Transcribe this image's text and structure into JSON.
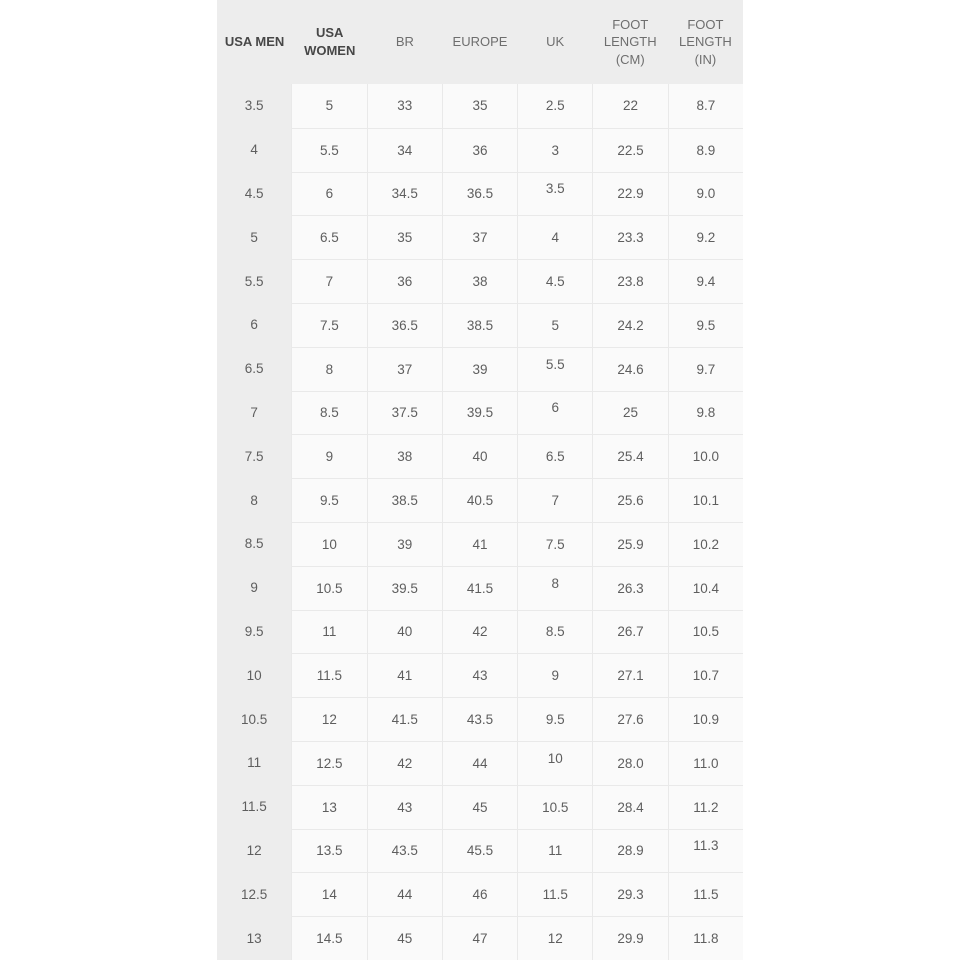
{
  "table": {
    "columns": [
      {
        "label": "USA MEN",
        "bold": true
      },
      {
        "label": "USA WOMEN",
        "bold": true
      },
      {
        "label": "BR",
        "bold": false
      },
      {
        "label": "EUROPE",
        "bold": false
      },
      {
        "label": "UK",
        "bold": false
      },
      {
        "label": "FOOT LENGTH (CM)",
        "bold": false
      },
      {
        "label": "FOOT LENGTH (IN)",
        "bold": false
      }
    ],
    "rows": [
      [
        "3.5",
        "5",
        "33",
        "35",
        "2.5",
        "22",
        "8.7"
      ],
      [
        "4",
        "5.5",
        "34",
        "36",
        "3",
        "22.5",
        "8.9"
      ],
      [
        "4.5",
        "6",
        "34.5",
        "36.5",
        "3.5",
        "22.9",
        "9.0"
      ],
      [
        "5",
        "6.5",
        "35",
        "37",
        "4",
        "23.3",
        "9.2"
      ],
      [
        "5.5",
        "7",
        "36",
        "38",
        "4.5",
        "23.8",
        "9.4"
      ],
      [
        "6",
        "7.5",
        "36.5",
        "38.5",
        "5",
        "24.2",
        "9.5"
      ],
      [
        "6.5",
        "8",
        "37",
        "39",
        "5.5",
        "24.6",
        "9.7"
      ],
      [
        "7",
        "8.5",
        "37.5",
        "39.5",
        "6",
        "25",
        "9.8"
      ],
      [
        "7.5",
        "9",
        "38",
        "40",
        "6.5",
        "25.4",
        "10.0"
      ],
      [
        "8",
        "9.5",
        "38.5",
        "40.5",
        "7",
        "25.6",
        "10.1"
      ],
      [
        "8.5",
        "10",
        "39",
        "41",
        "7.5",
        "25.9",
        "10.2"
      ],
      [
        "9",
        "10.5",
        "39.5",
        "41.5",
        "8",
        "26.3",
        "10.4"
      ],
      [
        "9.5",
        "11",
        "40",
        "42",
        "8.5",
        "26.7",
        "10.5"
      ],
      [
        "10",
        "11.5",
        "41",
        "43",
        "9",
        "27.1",
        "10.7"
      ],
      [
        "10.5",
        "12",
        "41.5",
        "43.5",
        "9.5",
        "27.6",
        "10.9"
      ],
      [
        "11",
        "12.5",
        "42",
        "44",
        "10",
        "28.0",
        "11.0"
      ],
      [
        "11.5",
        "13",
        "43",
        "45",
        "10.5",
        "28.4",
        "11.2"
      ],
      [
        "12",
        "13.5",
        "43.5",
        "45.5",
        "11",
        "28.9",
        "11.3"
      ],
      [
        "12.5",
        "14",
        "44",
        "46",
        "11.5",
        "29.3",
        "11.5"
      ],
      [
        "13",
        "14.5",
        "45",
        "47",
        "12",
        "29.9",
        "11.8"
      ]
    ],
    "raised_cells": [
      [
        2,
        4
      ],
      [
        6,
        4
      ],
      [
        7,
        4
      ],
      [
        11,
        4
      ],
      [
        15,
        4
      ],
      [
        17,
        6
      ]
    ]
  },
  "colors": {
    "page_background": "#ffffff",
    "header_background": "#ededed",
    "first_column_background": "#ededed",
    "cell_background": "#fafafa",
    "border": "#e9e9e9",
    "header_bold_text": "#474747",
    "header_text": "#6e6e6e",
    "body_text": "#5e5e5e"
  },
  "chart_data": {
    "type": "table",
    "title": "Shoe size conversion chart",
    "columns": [
      "USA MEN",
      "USA WOMEN",
      "BR",
      "EUROPE",
      "UK",
      "FOOT LENGTH (CM)",
      "FOOT LENGTH (IN)"
    ],
    "rows": [
      [
        3.5,
        5,
        33,
        35,
        2.5,
        22,
        8.7
      ],
      [
        4,
        5.5,
        34,
        36,
        3,
        22.5,
        8.9
      ],
      [
        4.5,
        6,
        34.5,
        36.5,
        3.5,
        22.9,
        9.0
      ],
      [
        5,
        6.5,
        35,
        37,
        4,
        23.3,
        9.2
      ],
      [
        5.5,
        7,
        36,
        38,
        4.5,
        23.8,
        9.4
      ],
      [
        6,
        7.5,
        36.5,
        38.5,
        5,
        24.2,
        9.5
      ],
      [
        6.5,
        8,
        37,
        39,
        5.5,
        24.6,
        9.7
      ],
      [
        7,
        8.5,
        37.5,
        39.5,
        6,
        25,
        9.8
      ],
      [
        7.5,
        9,
        38,
        40,
        6.5,
        25.4,
        10.0
      ],
      [
        8,
        9.5,
        38.5,
        40.5,
        7,
        25.6,
        10.1
      ],
      [
        8.5,
        10,
        39,
        41,
        7.5,
        25.9,
        10.2
      ],
      [
        9,
        10.5,
        39.5,
        41.5,
        8,
        26.3,
        10.4
      ],
      [
        9.5,
        11,
        40,
        42,
        8.5,
        26.7,
        10.5
      ],
      [
        10,
        11.5,
        41,
        43,
        9,
        27.1,
        10.7
      ],
      [
        10.5,
        12,
        41.5,
        43.5,
        9.5,
        27.6,
        10.9
      ],
      [
        11,
        12.5,
        42,
        44,
        10,
        28.0,
        11.0
      ],
      [
        11.5,
        13,
        43,
        45,
        10.5,
        28.4,
        11.2
      ],
      [
        12,
        13.5,
        43.5,
        45.5,
        11,
        28.9,
        11.3
      ],
      [
        12.5,
        14,
        44,
        46,
        11.5,
        29.3,
        11.5
      ],
      [
        13,
        14.5,
        45,
        47,
        12,
        29.9,
        11.8
      ]
    ]
  }
}
